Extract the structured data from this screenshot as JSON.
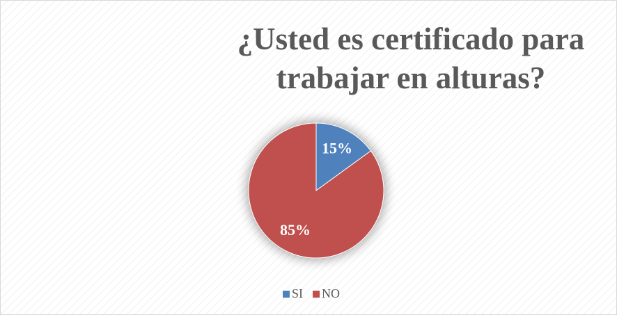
{
  "chart_data": {
    "type": "pie",
    "title": "¿Usted es certificado para trabajar en alturas?",
    "categories": [
      "SI",
      "NO"
    ],
    "values": [
      15,
      85
    ],
    "value_labels": [
      "15%",
      "85%"
    ],
    "colors": [
      "#4f81bd",
      "#c0504d"
    ],
    "legend": "bottom"
  }
}
